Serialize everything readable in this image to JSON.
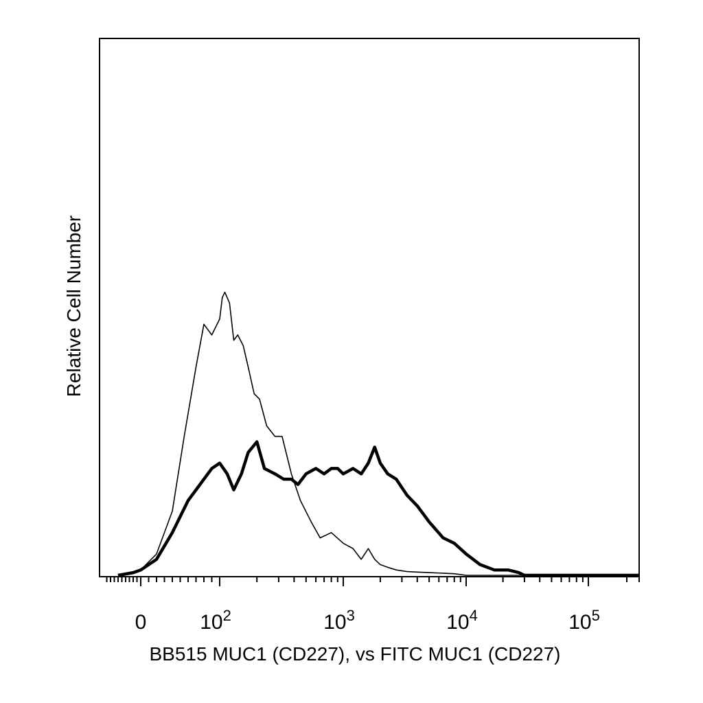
{
  "chart_data": {
    "type": "line",
    "title": "",
    "xlabel": "BB515 MUC1 (CD227), vs FITC MUC1 (CD227)",
    "ylabel": "Relative Cell Number",
    "x_scale": "biexponential",
    "x_ticks": [
      {
        "value": 0,
        "label": "0"
      },
      {
        "value": 100,
        "label": "10",
        "exp": "2"
      },
      {
        "value": 1000,
        "label": "10",
        "exp": "3"
      },
      {
        "value": 10000,
        "label": "10",
        "exp": "4"
      },
      {
        "value": 100000,
        "label": "10",
        "exp": "5"
      }
    ],
    "ylim": [
      0,
      100
    ],
    "grid": false,
    "legend": "none",
    "series": [
      {
        "style": "thin",
        "color": "#000000",
        "x": [
          -60,
          -20,
          0,
          20,
          40,
          55,
          70,
          80,
          90,
          100,
          105,
          110,
          120,
          130,
          140,
          155,
          170,
          190,
          210,
          240,
          280,
          320,
          380,
          450,
          550,
          650,
          800,
          1000,
          1200,
          1400,
          1600,
          1800,
          2000,
          2300,
          2700,
          3300,
          4000,
          5000,
          6500,
          8000,
          10000,
          30000,
          250000
        ],
        "y": [
          0,
          0.5,
          1,
          4,
          12,
          26,
          39,
          47,
          45,
          48,
          52,
          53,
          51,
          44,
          45,
          43,
          39,
          34,
          33,
          28,
          26,
          26,
          19,
          14,
          10,
          7,
          8,
          6,
          5,
          3,
          5,
          3,
          2,
          1.5,
          1,
          0.7,
          0.6,
          0.5,
          0.4,
          0.3,
          0,
          0,
          0
        ]
      },
      {
        "style": "thick",
        "color": "#000000",
        "x": [
          -60,
          -20,
          0,
          20,
          40,
          60,
          80,
          90,
          100,
          115,
          130,
          150,
          170,
          200,
          230,
          280,
          330,
          380,
          430,
          500,
          600,
          700,
          800,
          900,
          1000,
          1200,
          1400,
          1600,
          1800,
          2000,
          2300,
          2700,
          3300,
          4000,
          5000,
          6500,
          8000,
          10000,
          13000,
          17000,
          22000,
          27000,
          30000,
          250000
        ],
        "y": [
          0,
          0.5,
          1,
          3,
          8,
          14,
          18,
          20,
          21,
          19,
          16,
          19,
          23,
          25,
          20,
          19,
          18,
          18,
          17,
          19,
          20,
          19,
          20,
          20,
          19,
          20,
          19,
          21,
          24,
          21,
          19,
          18,
          15,
          13,
          10,
          7,
          6,
          4,
          2,
          1,
          1,
          0.5,
          0,
          0
        ]
      }
    ]
  }
}
